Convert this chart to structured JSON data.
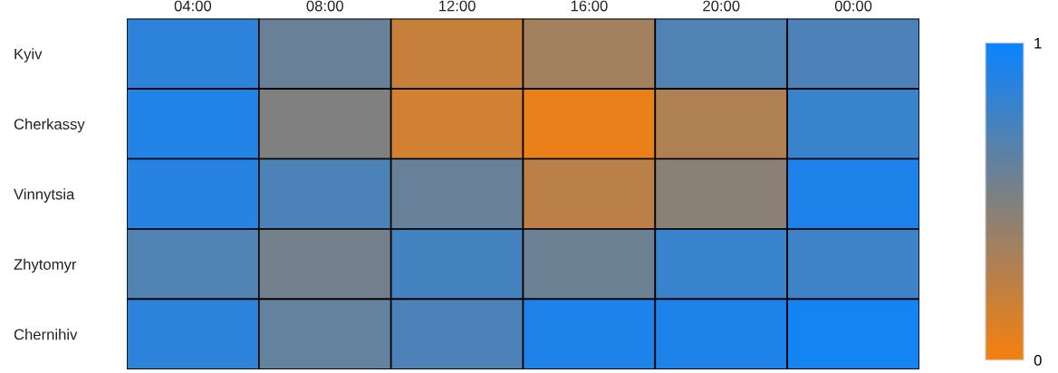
{
  "chart_data": {
    "type": "heatmap",
    "categories": [
      "04:00",
      "08:00",
      "12:00",
      "16:00",
      "20:00",
      "00:00"
    ],
    "y_categories": [
      "Kyiv",
      "Cherkassy",
      "Vinnytsia",
      "Zhytomyr",
      "Chernihiv"
    ],
    "cells": [
      [
        0.85,
        0.6,
        0.2,
        0.35,
        0.7,
        0.72
      ],
      [
        0.9,
        0.5,
        0.15,
        0.05,
        0.3,
        0.8
      ],
      [
        0.88,
        0.72,
        0.6,
        0.25,
        0.45,
        0.92
      ],
      [
        0.7,
        0.55,
        0.75,
        0.58,
        0.8,
        0.78
      ],
      [
        0.85,
        0.62,
        0.72,
        0.92,
        0.92,
        0.95
      ]
    ],
    "colors": [
      "#f5800f",
      "#808080",
      "#0a84ff"
    ],
    "clim": [
      0,
      1
    ],
    "cticks": [
      0,
      1
    ]
  }
}
